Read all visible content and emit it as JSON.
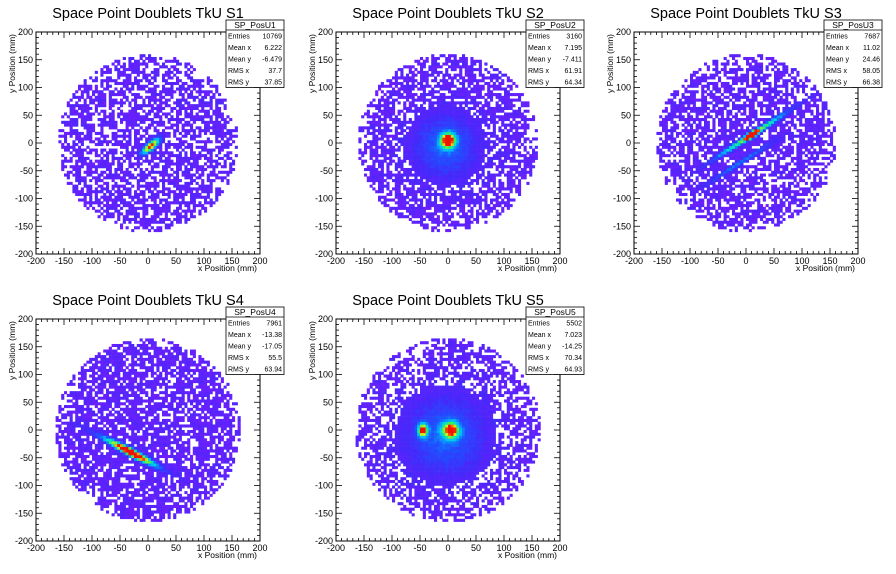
{
  "chart_data": [
    {
      "type": "heatmap",
      "title": "Space Point Doublets TkU S1",
      "xlabel": "x Position (mm)",
      "ylabel": "y Position (mm)",
      "xlim": [
        -200,
        200
      ],
      "ylim": [
        -200,
        200
      ],
      "x_ticks": [
        -200,
        -150,
        -100,
        -50,
        0,
        50,
        100,
        150,
        200
      ],
      "y_ticks": [
        -200,
        -150,
        -100,
        -50,
        0,
        50,
        100,
        150,
        200
      ],
      "stats": {
        "name": "SP_PosU1",
        "rows": [
          [
            "Entries",
            "10769"
          ],
          [
            "Mean x",
            "6.222"
          ],
          [
            "Mean y",
            "-6.479"
          ],
          [
            "RMS x",
            "37.7"
          ],
          [
            "RMS y",
            "37.85"
          ]
        ]
      },
      "disk_radius": 160,
      "fill_fraction": 0.62,
      "seed": 11,
      "hotspots": [
        {
          "x": 5,
          "y": -5,
          "sx": 14,
          "sy": 5,
          "angle": 40,
          "amp": 1.0
        }
      ]
    },
    {
      "type": "heatmap",
      "title": "Space Point Doublets TkU S2",
      "xlabel": "x Position (mm)",
      "ylabel": "y Position (mm)",
      "xlim": [
        -200,
        200
      ],
      "ylim": [
        -200,
        200
      ],
      "x_ticks": [
        -200,
        -150,
        -100,
        -50,
        0,
        50,
        100,
        150,
        200
      ],
      "y_ticks": [
        -200,
        -150,
        -100,
        -50,
        0,
        50,
        100,
        150,
        200
      ],
      "stats": {
        "name": "SP_PosU2",
        "rows": [
          [
            "Entries",
            "3160"
          ],
          [
            "Mean x",
            "7.195"
          ],
          [
            "Mean y",
            "-7.411"
          ],
          [
            "RMS x",
            "61.91"
          ],
          [
            "RMS y",
            "64.34"
          ]
        ]
      },
      "disk_radius": 160,
      "fill_fraction": 0.7,
      "seed": 23,
      "hotspots": [
        {
          "x": 0,
          "y": 5,
          "sx": 9,
          "sy": 9,
          "angle": 0,
          "amp": 1.0
        },
        {
          "x": -5,
          "y": -5,
          "sx": 40,
          "sy": 40,
          "angle": 0,
          "amp": 0.3
        }
      ]
    },
    {
      "type": "heatmap",
      "title": "Space Point Doublets TkU S3",
      "xlabel": "x Position (mm)",
      "ylabel": "y Position (mm)",
      "xlim": [
        -200,
        200
      ],
      "ylim": [
        -200,
        200
      ],
      "x_ticks": [
        -200,
        -150,
        -100,
        -50,
        0,
        50,
        100,
        150,
        200
      ],
      "y_ticks": [
        -200,
        -150,
        -100,
        -50,
        0,
        50,
        100,
        150,
        200
      ],
      "stats": {
        "name": "SP_PosU3",
        "rows": [
          [
            "Entries",
            "7687"
          ],
          [
            "Mean x",
            "11.02"
          ],
          [
            "Mean y",
            "24.46"
          ],
          [
            "RMS x",
            "58.05"
          ],
          [
            "RMS y",
            "66.38"
          ]
        ]
      },
      "disk_radius": 160,
      "fill_fraction": 0.66,
      "seed": 37,
      "hotspots": [
        {
          "x": 10,
          "y": 15,
          "sx": 55,
          "sy": 3.5,
          "angle": 33,
          "amp": 0.75
        },
        {
          "x": 10,
          "y": 15,
          "sx": 8,
          "sy": 4,
          "angle": 33,
          "amp": 1.0
        },
        {
          "x": -10,
          "y": -35,
          "sx": 55,
          "sy": 3,
          "angle": 33,
          "amp": 0.35
        }
      ]
    },
    {
      "type": "heatmap",
      "title": "Space Point Doublets TkU S4",
      "xlabel": "x Position (mm)",
      "ylabel": "y Position (mm)",
      "xlim": [
        -200,
        200
      ],
      "ylim": [
        -200,
        200
      ],
      "x_ticks": [
        -200,
        -150,
        -100,
        -50,
        0,
        50,
        100,
        150,
        200
      ],
      "y_ticks": [
        -200,
        -150,
        -100,
        -50,
        0,
        50,
        100,
        150,
        200
      ],
      "stats": {
        "name": "SP_PosU4",
        "rows": [
          [
            "Entries",
            "7961"
          ],
          [
            "Mean x",
            "-13.38"
          ],
          [
            "Mean y",
            "-17.05"
          ],
          [
            "RMS x",
            "55.5"
          ],
          [
            "RMS y",
            "63.94"
          ]
        ]
      },
      "disk_radius": 165,
      "fill_fraction": 0.74,
      "seed": 41,
      "hotspots": [
        {
          "x": -30,
          "y": -40,
          "sx": 28,
          "sy": 5,
          "angle": -28,
          "amp": 1.0
        },
        {
          "x": -40,
          "y": -35,
          "sx": 60,
          "sy": 4,
          "angle": -28,
          "amp": 0.35
        }
      ]
    },
    {
      "type": "heatmap",
      "title": "Space Point Doublets TkU S5",
      "xlabel": "x Position (mm)",
      "ylabel": "y Position (mm)",
      "xlim": [
        -200,
        200
      ],
      "ylim": [
        -200,
        200
      ],
      "x_ticks": [
        -200,
        -150,
        -100,
        -50,
        0,
        50,
        100,
        150,
        200
      ],
      "y_ticks": [
        -200,
        -150,
        -100,
        -50,
        0,
        50,
        100,
        150,
        200
      ],
      "stats": {
        "name": "SP_PosU5",
        "rows": [
          [
            "Entries",
            "5502"
          ],
          [
            "Mean x",
            "7.023"
          ],
          [
            "Mean y",
            "-14.25"
          ],
          [
            "RMS x",
            "70.34"
          ],
          [
            "RMS y",
            "64.93"
          ]
        ]
      },
      "disk_radius": 165,
      "fill_fraction": 0.62,
      "seed": 53,
      "hotspots": [
        {
          "x": 5,
          "y": 0,
          "sx": 10,
          "sy": 10,
          "angle": 0,
          "amp": 0.9
        },
        {
          "x": -45,
          "y": 0,
          "sx": 6,
          "sy": 8,
          "angle": 0,
          "amp": 0.9
        },
        {
          "x": -5,
          "y": -10,
          "sx": 50,
          "sy": 50,
          "angle": 0,
          "amp": 0.3
        }
      ]
    }
  ]
}
